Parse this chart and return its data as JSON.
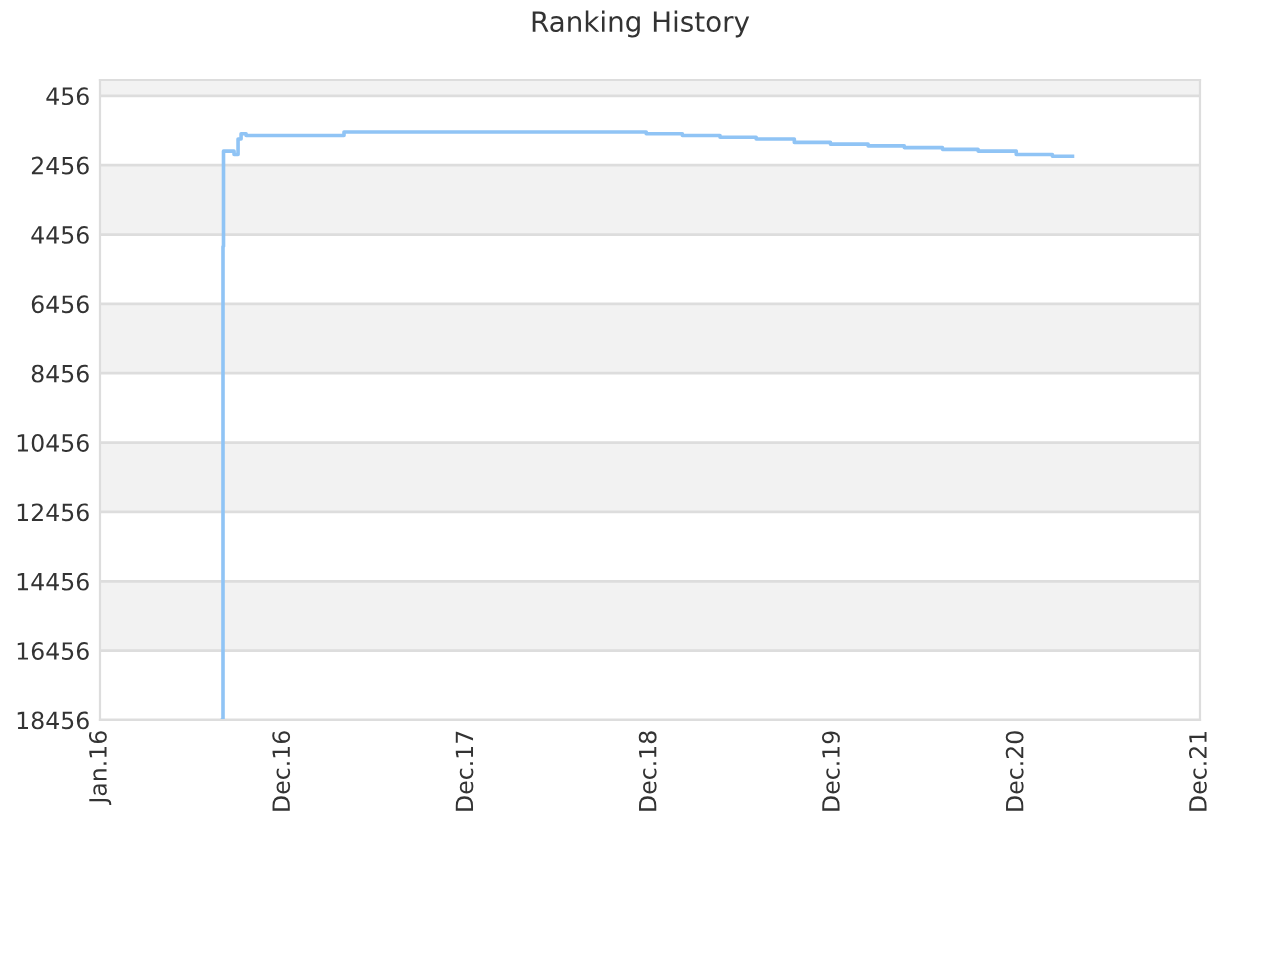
{
  "chart_data": {
    "type": "step",
    "title": "Ranking History",
    "x": [
      "2016-09-01",
      "2016-09-02",
      "2016-09-03",
      "2016-09-24",
      "2016-10-02",
      "2016-10-08",
      "2016-10-18",
      "2017-05-01",
      "2018-12-24",
      "2019-03-06",
      "2019-05-20",
      "2019-07-31",
      "2019-10-15",
      "2019-12-26",
      "2020-03-10",
      "2020-05-21",
      "2020-08-05",
      "2020-10-15",
      "2020-12-30",
      "2021-03-12",
      "2021-04-21"
    ],
    "series": [
      {
        "color": "#90c4f5",
        "values": [
          18456,
          4800,
          2050,
          2150,
          1700,
          1550,
          1600,
          1500,
          1550,
          1600,
          1650,
          1700,
          1800,
          1850,
          1900,
          1950,
          2000,
          2050,
          2150,
          2200,
          2200
        ]
      }
    ],
    "xlim": [
      "2016-01-01",
      "2021-12-31"
    ],
    "xticks": [
      {
        "value": "2016-01-01",
        "label": "Jan.16"
      },
      {
        "value": "2016-12-31",
        "label": "Dec.16"
      },
      {
        "value": "2017-12-31",
        "label": "Dec.17"
      },
      {
        "value": "2018-12-31",
        "label": "Dec.18"
      },
      {
        "value": "2019-12-31",
        "label": "Dec.19"
      },
      {
        "value": "2020-12-31",
        "label": "Dec.20"
      },
      {
        "value": "2021-12-31",
        "label": "Dec.21"
      }
    ],
    "ylim": [
      18456,
      0
    ],
    "yticks": [
      456,
      2456,
      4456,
      6456,
      8456,
      10456,
      12456,
      14456,
      16456,
      18456
    ],
    "grid": "y",
    "marker": "none",
    "line_style": "solid"
  }
}
